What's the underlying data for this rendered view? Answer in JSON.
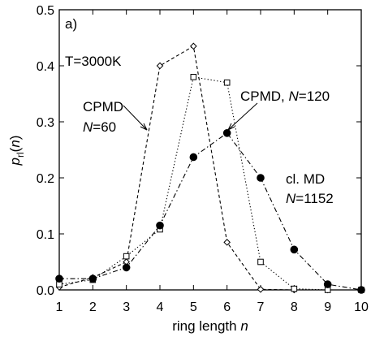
{
  "chart_data": {
    "type": "line",
    "panel_label": "a)",
    "xlabel": "ring length n",
    "ylabel": "p_rl(n)",
    "xlim": [
      1,
      10
    ],
    "ylim": [
      0,
      0.5
    ],
    "xticks": [
      1,
      2,
      3,
      4,
      5,
      6,
      7,
      8,
      9,
      10
    ],
    "yticks": [
      0.0,
      0.1,
      0.2,
      0.3,
      0.4,
      0.5
    ],
    "ytick_labels": [
      "0.0",
      "0.1",
      "0.2",
      "0.3",
      "0.4",
      "0.5"
    ],
    "grid": false,
    "annotations": {
      "temperature": "T=3000K",
      "cpmd60_line1": "CPMD",
      "cpmd60_line2": "N=60",
      "cpmd120": "CPMD, N=120",
      "clmd_line1": "cl. MD",
      "clmd_line2": "N=1152"
    },
    "series": [
      {
        "marker": "diamond-open",
        "line_style": "dashed",
        "x": [
          1,
          2,
          3,
          4,
          5,
          6,
          7,
          8,
          9,
          10
        ],
        "y": [
          0.005,
          0.022,
          0.05,
          0.4,
          0.435,
          0.085,
          0.001,
          0.0,
          0.0,
          0.0
        ]
      },
      {
        "marker": "square-open",
        "line_style": "dotted",
        "x": [
          1,
          2,
          3,
          4,
          5,
          6,
          7,
          8,
          9,
          10
        ],
        "y": [
          0.01,
          0.018,
          0.06,
          0.108,
          0.38,
          0.37,
          0.05,
          0.002,
          0.0,
          0.0
        ]
      },
      {
        "marker": "circle-filled",
        "line_style": "dash-dot",
        "x": [
          1,
          2,
          3,
          4,
          5,
          6,
          7,
          8,
          9,
          10
        ],
        "y": [
          0.02,
          0.02,
          0.04,
          0.115,
          0.237,
          0.28,
          0.2,
          0.072,
          0.01,
          0.0
        ]
      }
    ]
  }
}
